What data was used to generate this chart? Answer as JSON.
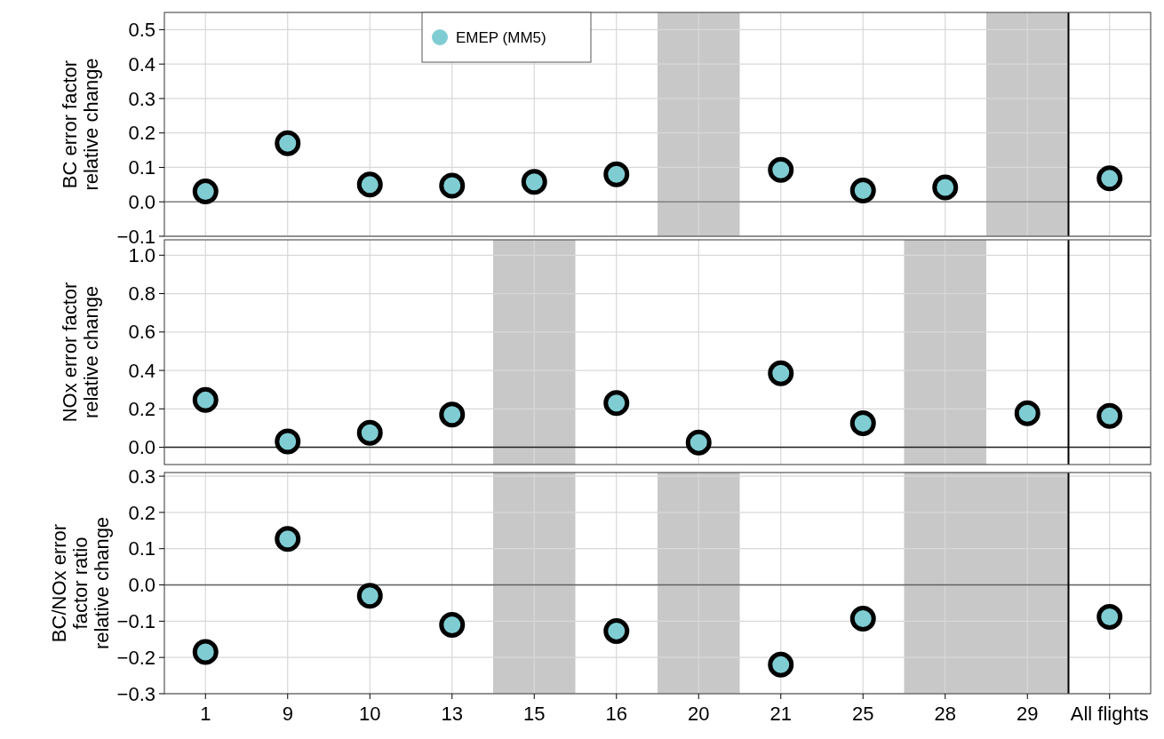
{
  "chart_data": [
    {
      "type": "scatter",
      "ylabel": "BC error factor\nrelative change",
      "categories": [
        "1",
        "9",
        "10",
        "13",
        "15",
        "16",
        "20",
        "21",
        "25",
        "28",
        "29",
        "All flights"
      ],
      "series": [
        {
          "name": "EMEP (MM5)",
          "color": "#7fcdd3",
          "values": [
            0.03,
            0.17,
            0.05,
            0.047,
            0.058,
            0.08,
            null,
            0.093,
            0.033,
            0.042,
            null,
            0.068
          ]
        }
      ],
      "ylim": [
        -0.1,
        0.55
      ],
      "yticks": [
        {
          "value": -0.1,
          "label": "−0.1"
        },
        {
          "value": 0,
          "label": "0.0"
        },
        0.1,
        0.2,
        0.3,
        0.4,
        0.5
      ],
      "bands": [
        {
          "axis": "x",
          "from": "20",
          "to": "20",
          "color": "#c8c8c8"
        },
        {
          "axis": "x",
          "from": "29",
          "to": "29",
          "color": "#c8c8c8"
        }
      ],
      "ref_lines": [
        {
          "axis": "y",
          "value": 0,
          "color": "#808080"
        },
        {
          "axis": "x",
          "value": "All flights",
          "color": "#000000"
        }
      ],
      "grid": true,
      "legend": "top",
      "marker": "circle",
      "tick_labels": "y"
    },
    {
      "type": "scatter",
      "ylabel": "NOx error factor\nrelative change",
      "categories": [
        "1",
        "9",
        "10",
        "13",
        "15",
        "16",
        "20",
        "21",
        "25",
        "28",
        "29",
        "All flights"
      ],
      "series": [
        {
          "color": "#7fcdd3",
          "values": [
            0.246,
            0.03,
            0.075,
            0.17,
            null,
            0.23,
            0.025,
            0.385,
            0.125,
            null,
            0.177,
            0.163
          ]
        }
      ],
      "ylim": [
        -0.09,
        1.08
      ],
      "yticks": [
        {
          "value": 0,
          "label": "0.0"
        },
        0.2,
        0.4,
        0.6,
        0.8,
        {
          "value": 1,
          "label": "1.0"
        }
      ],
      "bands": [
        {
          "axis": "x",
          "from": "15",
          "to": "15",
          "color": "#c8c8c8"
        },
        {
          "axis": "x",
          "from": "28",
          "to": "28",
          "color": "#c8c8c8"
        }
      ],
      "ref_lines": [
        {
          "axis": "y",
          "value": 0,
          "color": "#202020"
        },
        {
          "axis": "x",
          "value": "All flights",
          "color": "#000000"
        }
      ],
      "grid": true,
      "marker": "circle",
      "tick_labels": "y"
    },
    {
      "type": "scatter",
      "ylabel": "BC/NOx error\nfactor ratio\nrelative change",
      "categories": [
        "1",
        "9",
        "10",
        "13",
        "15",
        "16",
        "20",
        "21",
        "25",
        "28",
        "29",
        "All flights"
      ],
      "series": [
        {
          "color": "#7fcdd3",
          "values": [
            -0.185,
            0.127,
            -0.03,
            -0.11,
            null,
            -0.127,
            null,
            -0.22,
            -0.093,
            null,
            null,
            -0.088
          ]
        }
      ],
      "ylim": [
        -0.3,
        0.31
      ],
      "yticks": [
        {
          "value": -0.3,
          "label": "−0.3"
        },
        {
          "value": -0.2,
          "label": "−0.2"
        },
        {
          "value": -0.1,
          "label": "−0.1"
        },
        {
          "value": 0,
          "label": "0.0"
        },
        0.1,
        0.2,
        0.3
      ],
      "bands": [
        {
          "axis": "x",
          "from": "15",
          "to": "15",
          "color": "#c8c8c8"
        },
        {
          "axis": "x",
          "from": "20",
          "to": "20",
          "color": "#c8c8c8"
        },
        {
          "axis": "x",
          "from": "28",
          "to": "29",
          "color": "#c8c8c8"
        }
      ],
      "ref_lines": [
        {
          "axis": "y",
          "value": 0,
          "color": "#606060"
        },
        {
          "axis": "x",
          "value": "All flights",
          "color": "#000000"
        }
      ],
      "grid": true,
      "marker": "circle"
    }
  ]
}
